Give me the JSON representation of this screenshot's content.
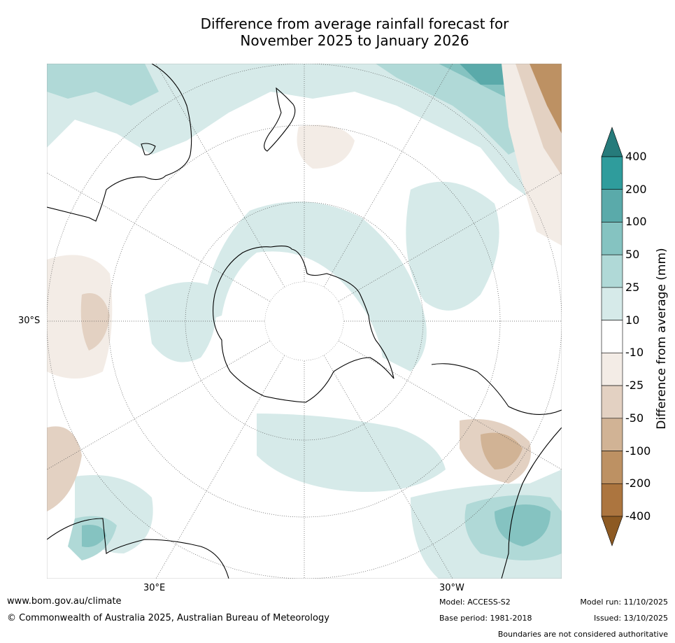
{
  "title": {
    "line1": "Difference from average rainfall forecast for",
    "line2": "November 2025 to January 2026"
  },
  "map": {
    "projection": "south-polar stereographic",
    "labels": {
      "lat_30s": "30°S",
      "lon_30e": "30°E",
      "lon_30w": "30°W"
    }
  },
  "colorbar": {
    "label": "Difference from average (mm)",
    "ticks": [
      "400",
      "200",
      "100",
      "50",
      "25",
      "10",
      "-10",
      "-25",
      "-50",
      "-100",
      "-200",
      "-400"
    ],
    "colors": {
      "gt400": "#267b7b",
      "200_400": "#2f9c9c",
      "100_200": "#5aaaaa",
      "50_100": "#85c3c1",
      "25_50": "#b0d9d7",
      "10_25": "#d6eae9",
      "neutral": "#ffffff",
      "m25_m10": "#f3ece6",
      "m50_m25": "#e3d1c2",
      "m100_m50": "#d1b395",
      "m200_m100": "#bd9163",
      "m400_m200": "#ac753f",
      "lt_m400": "#8d5a23"
    }
  },
  "footer": {
    "url": "www.bom.gov.au/climate",
    "copyright": "© Commonwealth of Australia 2025, Australian Bureau of Meteorology",
    "model": "Model: ACCESS-S2",
    "base_period": "Base period: 1981-2018",
    "model_run": "Model run: 11/10/2025",
    "issued": "Issued: 13/10/2025",
    "disclaimer": "Boundaries are not considered authoritative"
  }
}
